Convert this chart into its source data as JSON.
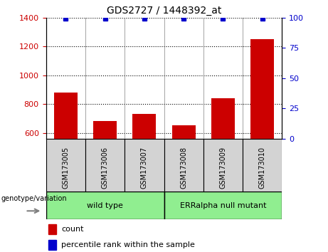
{
  "title": "GDS2727 / 1448392_at",
  "samples": [
    "GSM173005",
    "GSM173006",
    "GSM173007",
    "GSM173008",
    "GSM173009",
    "GSM173010"
  ],
  "counts": [
    880,
    680,
    730,
    650,
    840,
    1250
  ],
  "percentile_ranks": [
    99,
    99,
    99,
    99,
    99,
    99
  ],
  "ylim_left": [
    560,
    1400
  ],
  "ylim_right": [
    0,
    100
  ],
  "yticks_left": [
    600,
    800,
    1000,
    1200,
    1400
  ],
  "yticks_right": [
    0,
    25,
    50,
    75,
    100
  ],
  "bar_color": "#cc0000",
  "dot_color": "#0000cc",
  "grid_color": "#000000",
  "groups": [
    {
      "label": "wild type",
      "span": [
        0,
        3
      ]
    },
    {
      "label": "ERRalpha null mutant",
      "span": [
        3,
        6
      ]
    }
  ],
  "group_color": "#90ee90",
  "label_text": "genotype/variation",
  "legend_count_label": "count",
  "legend_pct_label": "percentile rank within the sample",
  "tick_label_color_left": "#cc0000",
  "tick_label_color_right": "#0000cc",
  "bg_plot": "#ffffff",
  "bg_sample_box": "#d3d3d3"
}
